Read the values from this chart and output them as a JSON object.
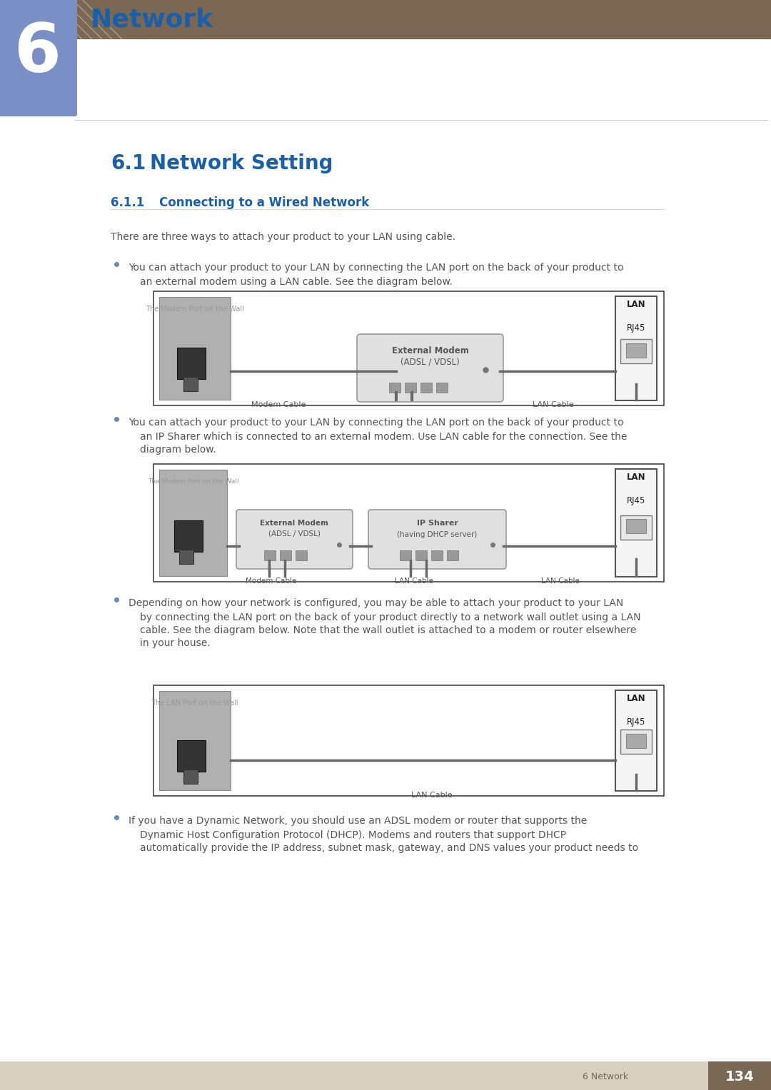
{
  "bg_color": "#ffffff",
  "header_bar_color": "#7a6855",
  "chapter_box_color": "#7b8fc7",
  "chapter_number": "6",
  "chapter_title": "Network",
  "section_number": "6.1",
  "section_title": "Network Setting",
  "subsection_number": "6.1.1",
  "subsection_title": "Connecting to a Wired Network",
  "blue_color": "#1a5fa8",
  "text_color": "#555555",
  "light_text_color": "#999999",
  "gray_text_color": "#888888",
  "intro_text": "There are three ways to attach your product to your LAN using cable.",
  "bullet_color": "#6688bb",
  "bullet1_line1": "You can attach your product to your LAN by connecting the LAN port on the back of your product to",
  "bullet1_line2": "an external modem using a LAN cable. See the diagram below.",
  "bullet2_line1": "You can attach your product to your LAN by connecting the LAN port on the back of your product to",
  "bullet2_line2": "an IP Sharer which is connected to an external modem. Use LAN cable for the connection. See the",
  "bullet2_line3": "diagram below.",
  "bullet3_line1": "Depending on how your network is configured, you may be able to attach your product to your LAN",
  "bullet3_line2": "by connecting the LAN port on the back of your product directly to a network wall outlet using a LAN",
  "bullet3_line3": "cable. See the diagram below. Note that the wall outlet is attached to a modem or router elsewhere",
  "bullet3_line4": "in your house.",
  "bullet4_line1": "If you have a Dynamic Network, you should use an ADSL modem or router that supports the",
  "bullet4_line2": "Dynamic Host Configuration Protocol (DHCP). Modems and routers that support DHCP",
  "bullet4_line3": "automatically provide the IP address, subnet mask, gateway, and DNS values your product needs to",
  "diag_border": "#444444",
  "diag_bg": "#ffffff",
  "wall_fill": "#b0b0b0",
  "wall_edge": "#888888",
  "outlet_fill": "#333333",
  "modem_fill": "#e0e0e0",
  "modem_edge": "#999999",
  "port_fill": "#999999",
  "port_edge": "#777777",
  "cable_color": "#666666",
  "lan_box_fill": "#f5f5f5",
  "lan_box_edge": "#555555",
  "rj45_fill": "#e8e8e8",
  "rj45_edge": "#777777",
  "conn_fill": "#cccccc",
  "conn_edge": "#999999",
  "footer_bg": "#d8d0c0",
  "footer_dark": "#7a6855",
  "footer_text": "6 Network",
  "page_number": "134"
}
